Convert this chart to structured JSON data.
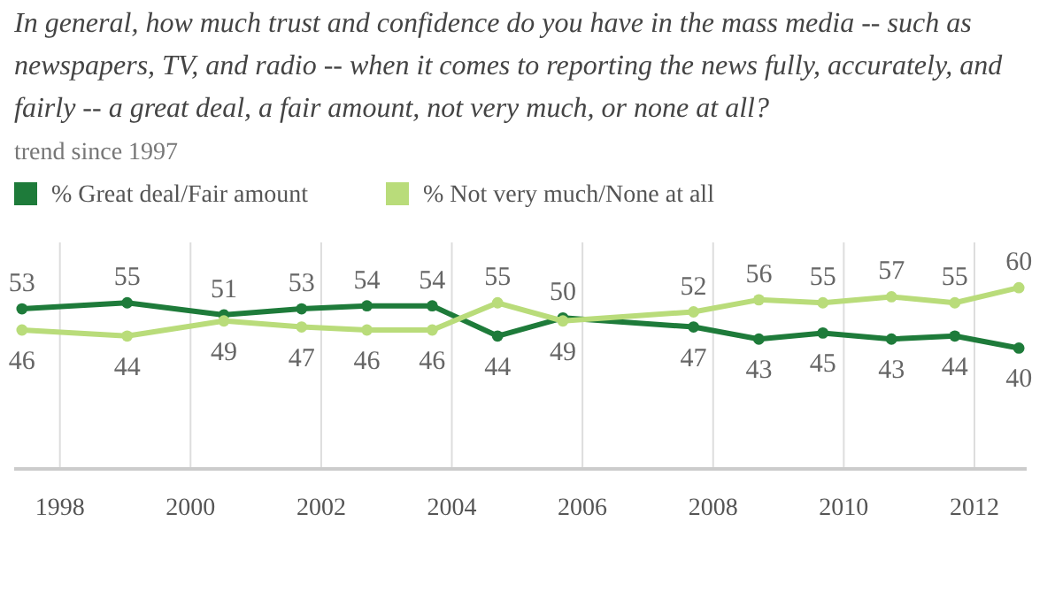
{
  "chart_data": {
    "type": "line",
    "title": "In general, how much trust and confidence do you have in the mass media -- such as newspapers, TV, and radio -- when it comes to reporting the news fully, accurately, and fairly -- a great deal, a fair amount, not very much, or none at all?",
    "subtitle": "trend since 1997",
    "x": [
      1997.42,
      1999.03,
      2000.51,
      2001.7,
      2002.7,
      2003.7,
      2004.7,
      2005.7,
      2007.7,
      2008.7,
      2009.68,
      2010.73,
      2011.7,
      2012.68
    ],
    "series": [
      {
        "name": "% Great deal/Fair amount",
        "color": "#1e7b3a",
        "values": [
          53,
          55,
          51,
          53,
          54,
          54,
          44,
          50,
          47,
          43,
          45,
          43,
          44,
          40
        ]
      },
      {
        "name": "% Not very much/None at all",
        "color": "#b9dc7a",
        "values": [
          46,
          44,
          49,
          47,
          46,
          46,
          55,
          49,
          52,
          56,
          55,
          57,
          55,
          60
        ]
      }
    ],
    "xlim": [
      1997.3,
      2012.8
    ],
    "xticks": [
      1998,
      2000,
      2002,
      2004,
      2006,
      2008,
      2010,
      2012
    ],
    "ylim": [
      0,
      75
    ],
    "grid": "x",
    "legend": "top left",
    "marker": "circle",
    "line_style": "solid",
    "data_labels": true,
    "tick_labels": "x"
  }
}
